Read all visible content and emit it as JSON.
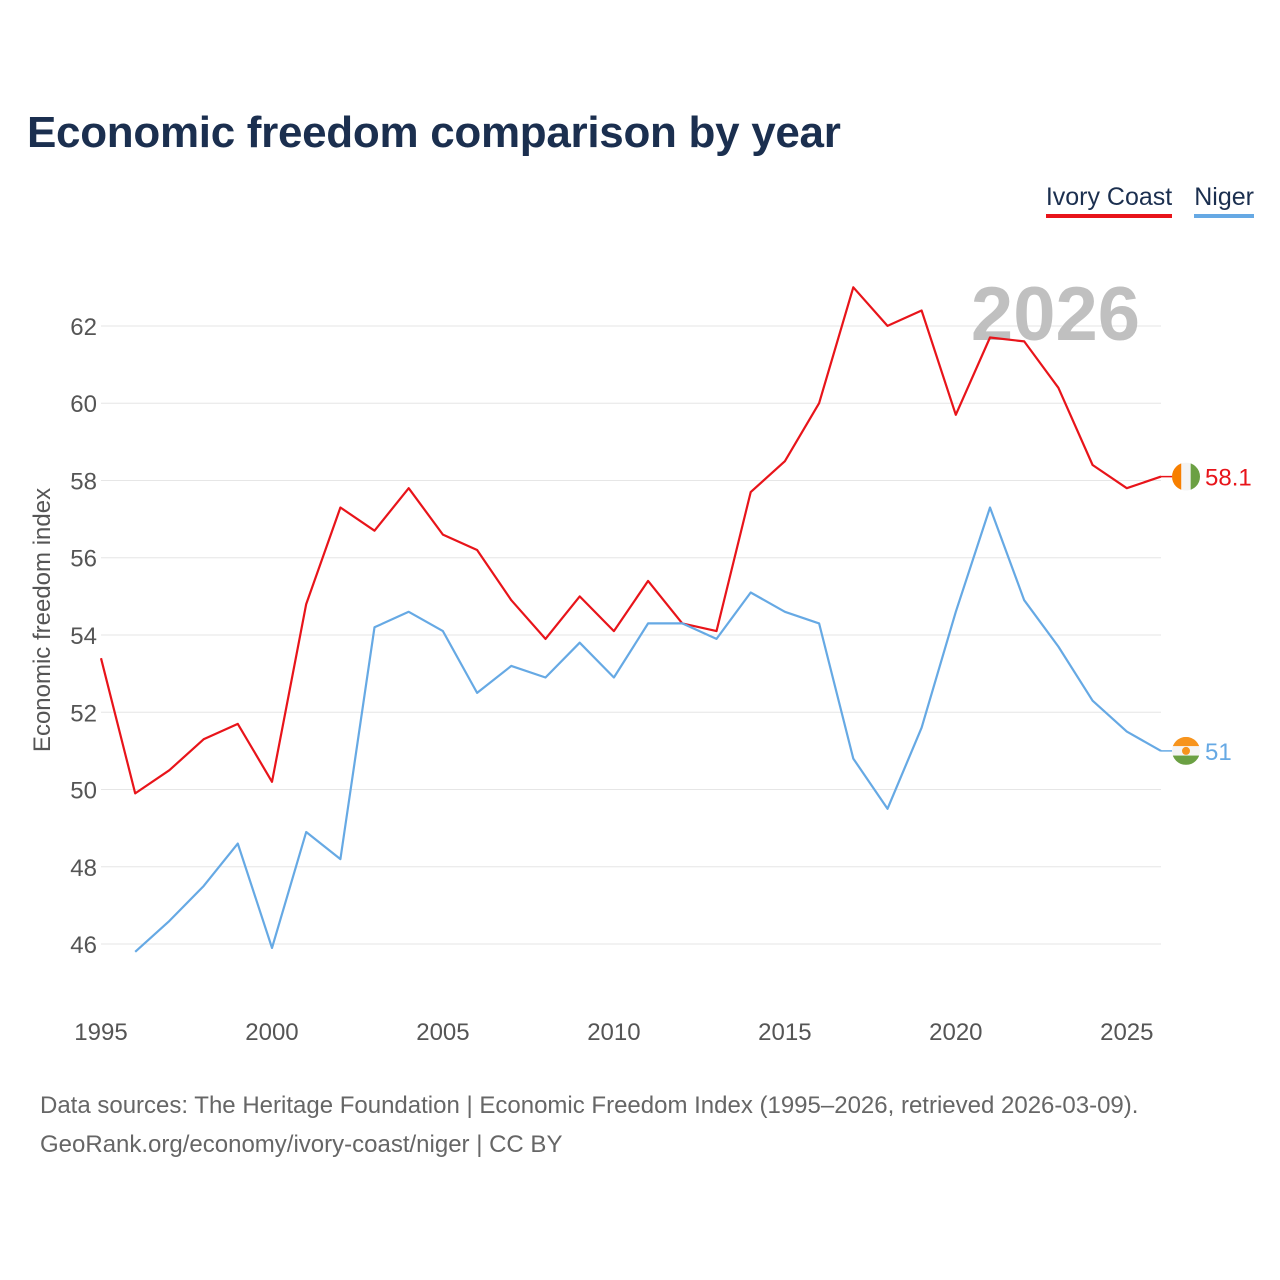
{
  "title": "Economic freedom comparison by year",
  "legend": [
    "Ivory Coast",
    "Niger"
  ],
  "watermark_year": "2026",
  "source": {
    "line1": "Data sources: The Heritage Foundation | Economic Freedom Index (1995–2026, retrieved 2026-03-09).",
    "line2": "GeoRank.org/economy/ivory-coast/niger | CC BY"
  },
  "chart_data": {
    "type": "line",
    "title": "Economic freedom comparison by year",
    "xlabel": "",
    "ylabel": "Economic freedom index",
    "xlim": [
      1995,
      2026
    ],
    "ylim": [
      44.5,
      63.5
    ],
    "x_ticks": [
      1995,
      2000,
      2005,
      2010,
      2015,
      2020,
      2025
    ],
    "y_ticks": [
      46,
      48,
      50,
      52,
      54,
      56,
      58,
      60,
      62
    ],
    "grid": true,
    "legend_position": "top-right",
    "series": [
      {
        "name": "Ivory Coast",
        "color": "#e8141a",
        "end_label": "58.1",
        "x": [
          1995,
          1996,
          1997,
          1998,
          1999,
          2000,
          2001,
          2002,
          2003,
          2004,
          2005,
          2006,
          2007,
          2008,
          2009,
          2010,
          2011,
          2012,
          2013,
          2014,
          2015,
          2016,
          2017,
          2018,
          2019,
          2020,
          2021,
          2022,
          2023,
          2024,
          2025,
          2026
        ],
        "values": [
          53.4,
          49.9,
          50.5,
          51.3,
          51.7,
          50.2,
          54.8,
          57.3,
          56.7,
          57.8,
          56.6,
          56.2,
          54.9,
          53.9,
          55.0,
          54.1,
          55.4,
          54.3,
          54.1,
          57.7,
          58.5,
          60.0,
          63.0,
          62.0,
          62.4,
          59.7,
          61.7,
          61.6,
          60.4,
          58.4,
          57.8,
          58.1
        ]
      },
      {
        "name": "Niger",
        "color": "#66a9e4",
        "end_label": "51",
        "x": [
          1996,
          1997,
          1998,
          1999,
          2000,
          2001,
          2002,
          2003,
          2004,
          2005,
          2006,
          2007,
          2008,
          2009,
          2010,
          2011,
          2012,
          2013,
          2014,
          2015,
          2016,
          2017,
          2018,
          2019,
          2020,
          2021,
          2022,
          2023,
          2024,
          2025,
          2026
        ],
        "values": [
          45.8,
          46.6,
          47.5,
          48.6,
          45.9,
          48.9,
          48.2,
          54.2,
          54.6,
          54.1,
          52.5,
          53.2,
          52.9,
          53.8,
          52.9,
          54.3,
          54.3,
          53.9,
          55.1,
          54.6,
          54.3,
          50.8,
          49.5,
          51.6,
          54.6,
          57.3,
          54.9,
          53.7,
          52.3,
          51.5,
          51.0
        ]
      }
    ]
  }
}
